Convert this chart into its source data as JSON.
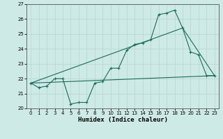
{
  "xlabel": "Humidex (Indice chaleur)",
  "ylabel": "",
  "xlim": [
    -0.5,
    23.5
  ],
  "ylim": [
    20,
    27
  ],
  "yticks": [
    20,
    21,
    22,
    23,
    24,
    25,
    26,
    27
  ],
  "xticks": [
    0,
    1,
    2,
    3,
    4,
    5,
    6,
    7,
    8,
    9,
    10,
    11,
    12,
    13,
    14,
    15,
    16,
    17,
    18,
    19,
    20,
    21,
    22,
    23
  ],
  "bg_color": "#ceeae6",
  "grid_color": "#b8d8d4",
  "line_color": "#1a6b5a",
  "line1": {
    "x": [
      0,
      1,
      2,
      3,
      4,
      5,
      6,
      7,
      8,
      9,
      10,
      11,
      12,
      13,
      14,
      15,
      16,
      17,
      18,
      19,
      20,
      21,
      22,
      23
    ],
    "y": [
      21.7,
      21.4,
      21.5,
      22.0,
      22.0,
      20.3,
      20.4,
      20.4,
      21.7,
      21.8,
      22.7,
      22.7,
      23.9,
      24.3,
      24.4,
      24.6,
      26.3,
      26.4,
      26.6,
      25.4,
      23.8,
      23.6,
      22.2,
      22.2
    ]
  },
  "line2": {
    "x": [
      0,
      23
    ],
    "y": [
      21.7,
      22.2
    ]
  },
  "line3": {
    "x": [
      0,
      19,
      23
    ],
    "y": [
      21.7,
      25.4,
      22.2
    ]
  }
}
